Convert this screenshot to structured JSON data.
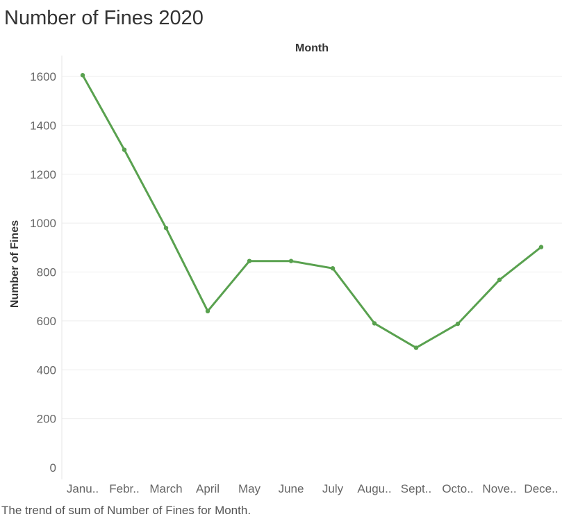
{
  "title": "Number of Fines 2020",
  "caption": "The trend of sum of Number of Fines for Month.",
  "chart_data": {
    "type": "line",
    "title": "Number of Fines 2020",
    "xlabel": "Month",
    "ylabel": "Number of Fines",
    "categories": [
      "Janu..",
      "Febr..",
      "March",
      "April",
      "May",
      "June",
      "July",
      "Augu..",
      "Sept..",
      "Octo..",
      "Nove..",
      "Dece.."
    ],
    "series": [
      {
        "values": [
          1605,
          1300,
          980,
          640,
          845,
          845,
          815,
          590,
          490,
          588,
          768,
          902
        ],
        "color": "#59a14f"
      }
    ],
    "yticks": [
      0,
      200,
      400,
      600,
      800,
      1000,
      1200,
      1400,
      1600
    ],
    "ylim": [
      0,
      1700
    ],
    "grid": true,
    "legend": "none"
  }
}
